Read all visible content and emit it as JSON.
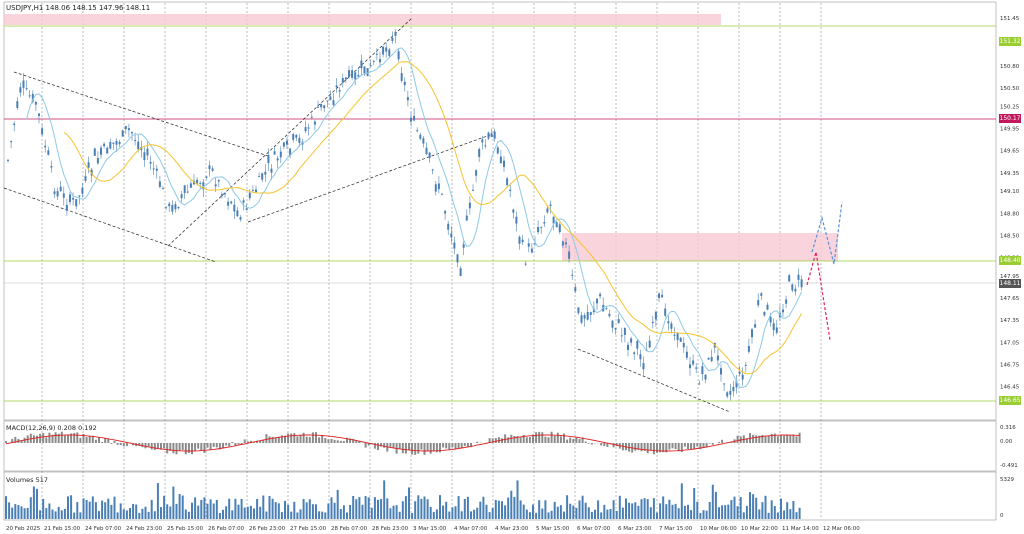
{
  "chart": {
    "symbol": "USDJPY,H1",
    "ohlc": "148.06 148.15 147.96 148.11",
    "price_axis": [
      "151.45",
      "151.10",
      "150.80",
      "150.50",
      "150.25",
      "149.95",
      "149.65",
      "149.35",
      "149.10",
      "148.80",
      "148.50",
      "148.20",
      "147.95",
      "147.65",
      "147.35",
      "147.05",
      "146.75",
      "146.45"
    ],
    "level_tags": [
      {
        "label": "151.32",
        "color": "#9acd32"
      },
      {
        "label": "150.17",
        "color": "#c2185b"
      },
      {
        "label": "148.40",
        "color": "#9acd32"
      },
      {
        "label": "148.11",
        "color": "#555555"
      },
      {
        "label": "146.65",
        "color": "#9acd32"
      }
    ],
    "time_axis": [
      "20 Feb 2025",
      "21 Feb 15:00",
      "24 Feb 07:00",
      "24 Feb 23:00",
      "25 Feb 15:00",
      "26 Feb 07:00",
      "26 Feb 23:00",
      "27 Feb 15:00",
      "28 Feb 07:00",
      "28 Feb 23:00",
      "3 Mar 15:00",
      "4 Mar 07:00",
      "4 Mar 23:00",
      "5 Mar 15:00",
      "6 Mar 07:00",
      "6 Mar 23:00",
      "7 Mar 15:00",
      "10 Mar 06:00",
      "10 Mar 22:00",
      "11 Mar 14:00",
      "12 Mar 06:00"
    ]
  },
  "macd": {
    "label": "MACD(12,26,9) 0.208 0.192",
    "axis": [
      "0.316",
      "0.00",
      "-0.491"
    ]
  },
  "volumes": {
    "label": "Volumes 517",
    "axis": [
      "5329",
      "0"
    ]
  },
  "colors": {
    "bull": "#4a7fb5",
    "bear": "#4a7fb5",
    "ma_fast": "#8ec9e8",
    "ma_slow": "#f4c430",
    "level_green": "#9acd32",
    "level_red": "#c2185b",
    "zone": "#f7c9d3",
    "signal_red": "#e0245e",
    "forecast_blue": "#5b8fd6"
  }
}
